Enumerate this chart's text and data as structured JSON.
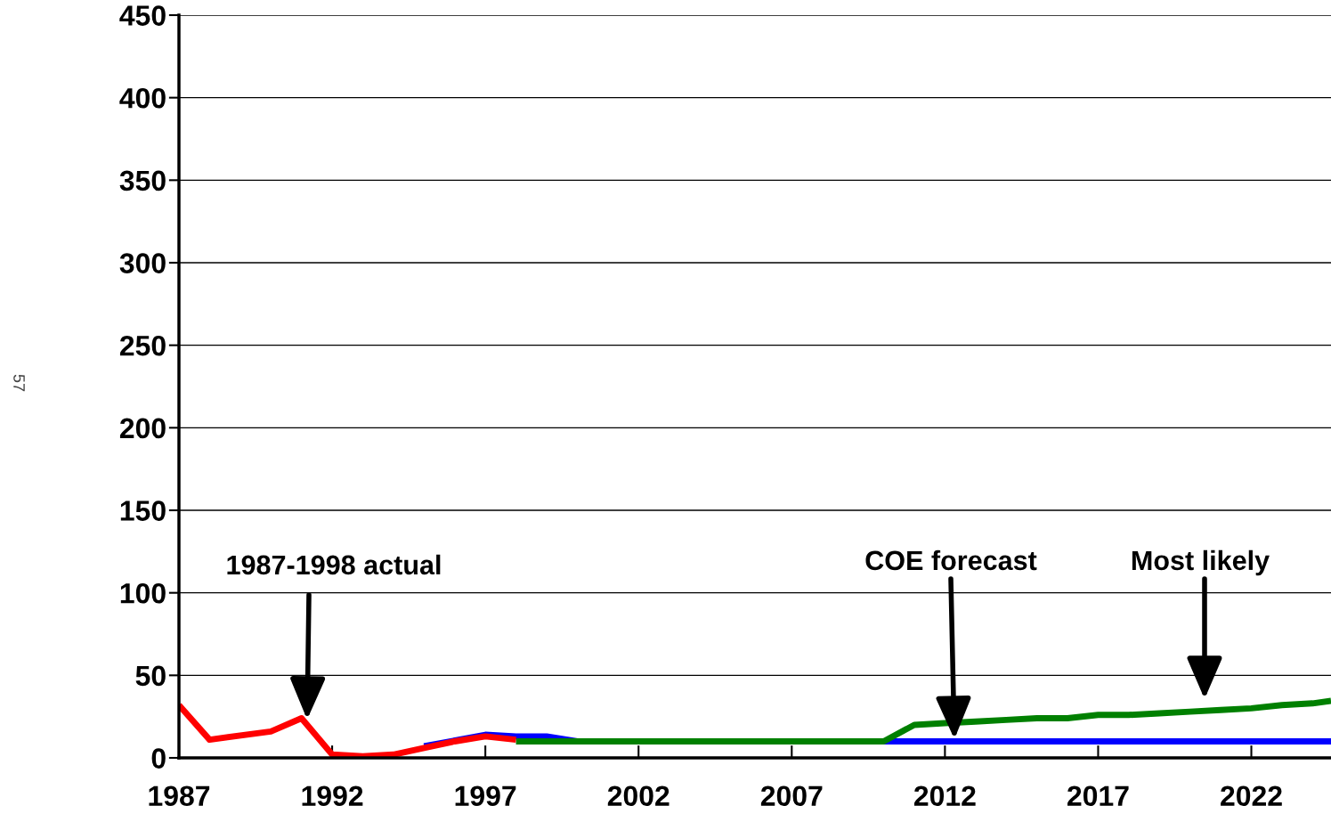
{
  "chart_data": {
    "type": "line",
    "xlim": [
      1987,
      2024.6
    ],
    "xticks": [
      1987,
      1992,
      1997,
      2002,
      2007,
      2012,
      2017,
      2022
    ],
    "ylim": [
      0,
      450
    ],
    "yticks": [
      0,
      50,
      100,
      150,
      200,
      250,
      300,
      350,
      400,
      450
    ],
    "grid": "y",
    "legend": false,
    "marker": "none",
    "line_style": "solid",
    "series": [
      {
        "color": "#0000ff",
        "x": [
          1995,
          1997,
          1998,
          1999,
          2000,
          2024.6
        ],
        "values": [
          7,
          14,
          13,
          13,
          10,
          10
        ]
      },
      {
        "color": "#008000",
        "x": [
          1998,
          2000,
          2005,
          2010,
          2011,
          2012,
          2013,
          2014,
          2015,
          2016,
          2017,
          2018,
          2019,
          2020,
          2021,
          2022,
          2023,
          2024,
          2024.6
        ],
        "values": [
          10,
          10,
          10,
          10,
          20,
          21,
          22,
          23,
          24,
          24,
          26,
          26,
          27,
          28,
          29,
          30,
          32,
          33,
          34.5
        ]
      },
      {
        "color": "#ff0000",
        "x": [
          1987,
          1988,
          1990,
          1991,
          1992,
          1993,
          1994,
          1995,
          1996,
          1997,
          1998
        ],
        "values": [
          32,
          11,
          16,
          24,
          2,
          1,
          2,
          6,
          10,
          13,
          11
        ]
      }
    ],
    "annotations": [
      "1987-1998 actual",
      "COE forecast",
      "Most likely",
      "57"
    ]
  }
}
